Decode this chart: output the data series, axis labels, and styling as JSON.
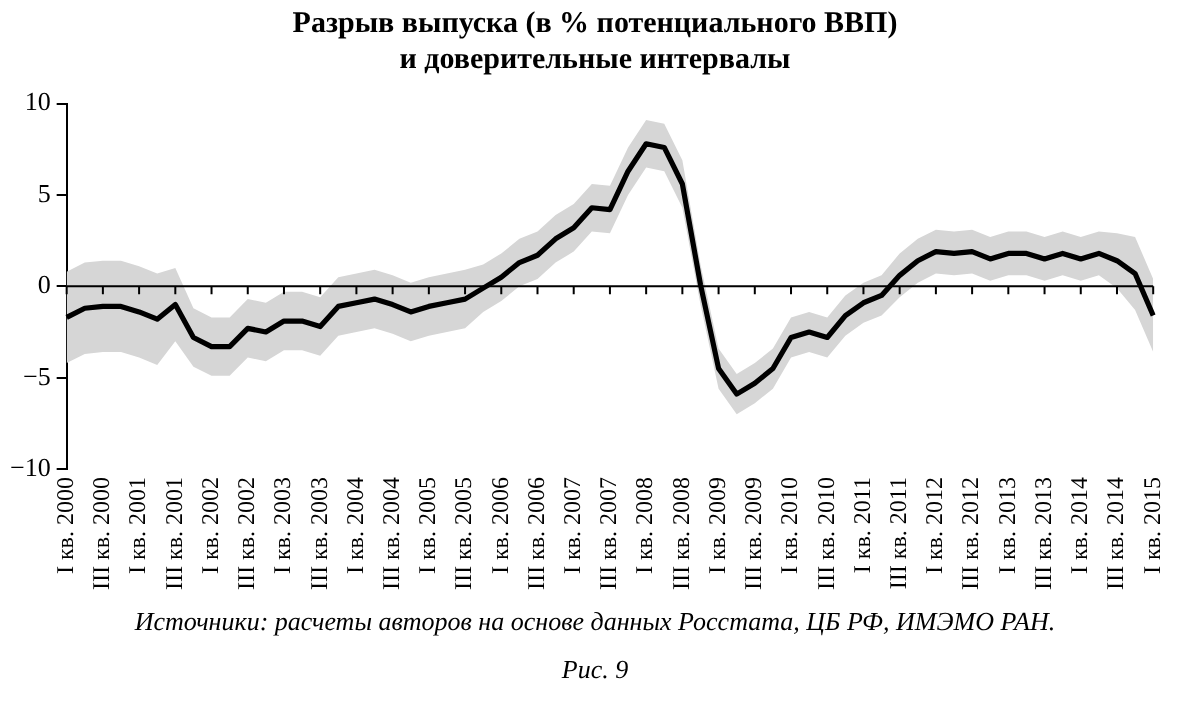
{
  "chart_data": {
    "type": "line",
    "title": "Разрыв выпуска (в % потенциального ВВП)\nи доверительные интервалы",
    "categories": [
      "I кв. 2000",
      null,
      "III кв. 2000",
      null,
      "I кв. 2001",
      null,
      "III кв. 2001",
      null,
      "I кв. 2002",
      null,
      "III кв. 2002",
      null,
      "I кв. 2003",
      null,
      "III кв. 2003",
      null,
      "I кв. 2004",
      null,
      "III кв. 2004",
      null,
      "I кв. 2005",
      null,
      "III кв. 2005",
      null,
      "I кв. 2006",
      null,
      "III кв. 2006",
      null,
      "I кв. 2007",
      null,
      "III кв. 2007",
      null,
      "I кв. 2008",
      null,
      "III кв. 2008",
      null,
      "I кв. 2009",
      null,
      "III кв. 2009",
      null,
      "I кв. 2010",
      null,
      "III кв. 2010",
      null,
      "I кв. 2011",
      null,
      "III кв. 2011",
      null,
      "I кв. 2012",
      null,
      "III кв. 2012",
      null,
      "I кв. 2013",
      null,
      "III кв. 2013",
      null,
      "I кв. 2014",
      null,
      "III кв. 2014",
      null,
      "I кв. 2015"
    ],
    "series": [
      {
        "color": "#000000",
        "values": [
          -1.7,
          -1.2,
          -1.1,
          -1.1,
          -1.4,
          -1.8,
          -1.0,
          -2.8,
          -3.3,
          -3.3,
          -2.3,
          -2.5,
          -1.9,
          -1.9,
          -2.2,
          -1.1,
          -0.9,
          -0.7,
          -1.0,
          -1.4,
          -1.1,
          -0.9,
          -0.7,
          -0.1,
          0.5,
          1.3,
          1.7,
          2.6,
          3.2,
          4.3,
          4.2,
          6.3,
          7.8,
          7.6,
          5.6,
          0.1,
          -4.5,
          -5.9,
          -5.3,
          -4.5,
          -2.8,
          -2.5,
          -2.8,
          -1.6,
          -0.9,
          -0.5,
          0.6,
          1.4,
          1.9,
          1.8,
          1.9,
          1.5,
          1.8,
          1.8,
          1.5,
          1.8,
          1.5,
          1.8,
          1.4,
          0.7,
          -1.6
        ],
        "upper": [
          0.8,
          1.3,
          1.4,
          1.4,
          1.1,
          0.7,
          1.0,
          -1.2,
          -1.7,
          -1.7,
          -0.7,
          -0.9,
          -0.3,
          -0.3,
          -0.6,
          0.5,
          0.7,
          0.9,
          0.6,
          0.2,
          0.5,
          0.7,
          0.9,
          1.2,
          1.8,
          2.6,
          3.0,
          3.9,
          4.5,
          5.6,
          5.5,
          7.6,
          9.1,
          8.9,
          6.9,
          1.2,
          -3.4,
          -4.8,
          -4.2,
          -3.4,
          -1.7,
          -1.4,
          -1.7,
          -0.5,
          0.2,
          0.6,
          1.8,
          2.6,
          3.1,
          3.0,
          3.1,
          2.7,
          3.0,
          3.0,
          2.7,
          3.0,
          2.7,
          3.0,
          2.9,
          2.7,
          0.4
        ],
        "lower": [
          -4.2,
          -3.7,
          -3.6,
          -3.6,
          -3.9,
          -4.3,
          -3.0,
          -4.4,
          -4.9,
          -4.9,
          -3.9,
          -4.1,
          -3.5,
          -3.5,
          -3.8,
          -2.7,
          -2.5,
          -2.3,
          -2.6,
          -3.0,
          -2.7,
          -2.5,
          -2.3,
          -1.4,
          -0.8,
          0.0,
          0.4,
          1.3,
          1.9,
          3.0,
          2.9,
          5.0,
          6.5,
          6.3,
          4.3,
          -1.0,
          -5.6,
          -7.0,
          -6.4,
          -5.6,
          -3.9,
          -3.6,
          -3.9,
          -2.7,
          -2.0,
          -1.6,
          -0.6,
          0.2,
          0.7,
          0.6,
          0.7,
          0.3,
          0.6,
          0.6,
          0.3,
          0.6,
          0.3,
          0.6,
          -0.1,
          -1.3,
          -3.6
        ]
      }
    ],
    "ylim": [
      -10,
      10
    ],
    "yticks": [
      -10,
      -5,
      0,
      5,
      10
    ],
    "legend": false,
    "grid": false,
    "ref_lines": [
      {
        "axis": "y",
        "value": 0,
        "color": "#000000"
      }
    ],
    "annotations": [
      "Источники: расчеты авторов на основе данных Росстата, ЦБ РФ, ИМЭМО РАН.",
      "Рис. 9"
    ]
  }
}
